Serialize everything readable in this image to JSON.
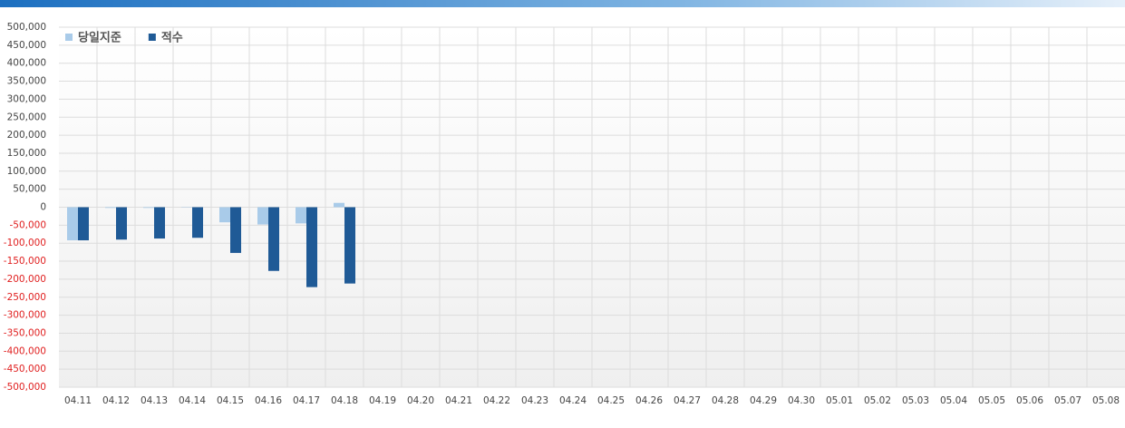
{
  "chart_data": {
    "type": "bar",
    "categories": [
      "04.11",
      "04.12",
      "04.13",
      "04.14",
      "04.15",
      "04.16",
      "04.17",
      "04.18",
      "04.19",
      "04.20",
      "04.21",
      "04.22",
      "04.23",
      "04.24",
      "04.25",
      "04.26",
      "04.27",
      "04.28",
      "04.29",
      "04.30",
      "05.01",
      "05.02",
      "05.03",
      "05.04",
      "05.05",
      "05.06",
      "05.07",
      "05.08"
    ],
    "series": [
      {
        "name": "당일지준",
        "color": "#a9cbe9",
        "values": [
          -92000,
          -2000,
          -2000,
          -1000,
          -42000,
          -48000,
          -45000,
          12000,
          null,
          null,
          null,
          null,
          null,
          null,
          null,
          null,
          null,
          null,
          null,
          null,
          null,
          null,
          null,
          null,
          null,
          null,
          null,
          null
        ]
      },
      {
        "name": "적수",
        "color": "#1f5a96",
        "values": [
          -92000,
          -90000,
          -87000,
          -85000,
          -127000,
          -177000,
          -222000,
          -212000,
          null,
          null,
          null,
          null,
          null,
          null,
          null,
          null,
          null,
          null,
          null,
          null,
          null,
          null,
          null,
          null,
          null,
          null,
          null,
          null
        ]
      }
    ],
    "ylim": [
      -500000,
      500000
    ],
    "yticks": [
      {
        "value": 500000,
        "label": "500,000"
      },
      {
        "value": 450000,
        "label": "450,000"
      },
      {
        "value": 400000,
        "label": "400,000"
      },
      {
        "value": 350000,
        "label": "350,000"
      },
      {
        "value": 300000,
        "label": "300,000"
      },
      {
        "value": 250000,
        "label": "250,000"
      },
      {
        "value": 200000,
        "label": "200,000"
      },
      {
        "value": 150000,
        "label": "150,000"
      },
      {
        "value": 100000,
        "label": "100,000"
      },
      {
        "value": 50000,
        "label": "50,000"
      },
      0,
      {
        "value": -50000,
        "label": "-50,000"
      },
      {
        "value": -100000,
        "label": "-100,000"
      },
      {
        "value": -150000,
        "label": "-150,000"
      },
      {
        "value": -200000,
        "label": "-200,000"
      },
      {
        "value": -250000,
        "label": "-250,000"
      },
      {
        "value": -300000,
        "label": "-300,000"
      },
      {
        "value": -350000,
        "label": "-350,000"
      },
      {
        "value": -400000,
        "label": "-400,000"
      },
      {
        "value": -450000,
        "label": "-450,000"
      },
      {
        "value": -500000,
        "label": "-500,000"
      }
    ],
    "negative_tick_color": "#e02020",
    "grid": true,
    "legend": "top-left"
  }
}
